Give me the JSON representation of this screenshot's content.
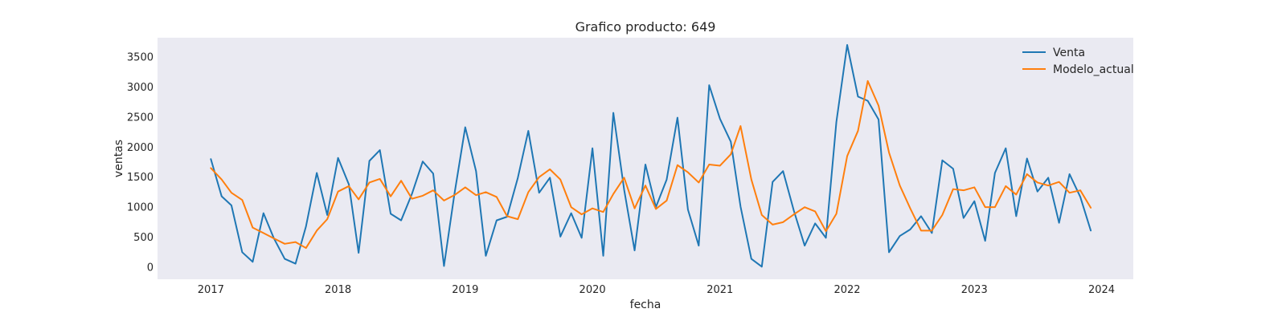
{
  "chart_data": {
    "type": "line",
    "title": "Grafico producto: 649",
    "xlabel": "fecha",
    "ylabel": "ventas",
    "xlim": [
      "2016-08-01",
      "2024-04-01"
    ],
    "ylim": [
      -200,
      3820
    ],
    "x_ticks": [
      "2017",
      "2018",
      "2019",
      "2020",
      "2021",
      "2022",
      "2023",
      "2024"
    ],
    "y_ticks": [
      0,
      500,
      1000,
      1500,
      2000,
      2500,
      3000,
      3500
    ],
    "grid": false,
    "legend": "top-right",
    "background": "#eaeaf2",
    "x": [
      "2017-01",
      "2017-02",
      "2017-03",
      "2017-04",
      "2017-05",
      "2017-06",
      "2017-07",
      "2017-08",
      "2017-09",
      "2017-10",
      "2017-11",
      "2017-12",
      "2018-01",
      "2018-02",
      "2018-03",
      "2018-04",
      "2018-05",
      "2018-06",
      "2018-07",
      "2018-08",
      "2018-09",
      "2018-10",
      "2018-11",
      "2018-12",
      "2019-01",
      "2019-02",
      "2019-03",
      "2019-04",
      "2019-05",
      "2019-06",
      "2019-07",
      "2019-08",
      "2019-09",
      "2019-10",
      "2019-11",
      "2019-12",
      "2020-01",
      "2020-02",
      "2020-03",
      "2020-04",
      "2020-05",
      "2020-06",
      "2020-07",
      "2020-08",
      "2020-09",
      "2020-10",
      "2020-11",
      "2020-12",
      "2021-01",
      "2021-02",
      "2021-03",
      "2021-04",
      "2021-05",
      "2021-06",
      "2021-07",
      "2021-08",
      "2021-09",
      "2021-10",
      "2021-11",
      "2021-12",
      "2022-01",
      "2022-02",
      "2022-03",
      "2022-04",
      "2022-05",
      "2022-06",
      "2022-07",
      "2022-08",
      "2022-09",
      "2022-10",
      "2022-11",
      "2022-12",
      "2023-01",
      "2023-02",
      "2023-03",
      "2023-04",
      "2023-05",
      "2023-06",
      "2023-07",
      "2023-08",
      "2023-09",
      "2023-10",
      "2023-11",
      "2023-12"
    ],
    "series": [
      {
        "name": "Venta",
        "color": "#1f77b4",
        "values": [
          1800,
          1180,
          1030,
          250,
          90,
          900,
          480,
          140,
          60,
          680,
          1570,
          870,
          1820,
          1380,
          240,
          1770,
          1950,
          890,
          780,
          1220,
          1760,
          1560,
          20,
          1220,
          2330,
          1600,
          190,
          780,
          840,
          1490,
          2270,
          1240,
          1490,
          510,
          900,
          490,
          1980,
          190,
          2570,
          1290,
          280,
          1710,
          1000,
          1460,
          2490,
          960,
          360,
          3030,
          2470,
          2090,
          1010,
          140,
          10,
          1420,
          1600,
          940,
          360,
          730,
          490,
          2420,
          3700,
          2840,
          2770,
          2460,
          250,
          520,
          630,
          850,
          570,
          1780,
          1640,
          820,
          1100,
          440,
          1570,
          1980,
          850,
          1810,
          1260,
          1490,
          740,
          1550,
          1170,
          610
        ]
      },
      {
        "name": "Modelo_actual",
        "color": "#ff7f0e",
        "values": [
          1650,
          1460,
          1240,
          1120,
          660,
          570,
          480,
          390,
          420,
          320,
          610,
          800,
          1260,
          1350,
          1130,
          1410,
          1470,
          1180,
          1440,
          1140,
          1190,
          1280,
          1110,
          1200,
          1330,
          1200,
          1250,
          1170,
          850,
          800,
          1250,
          1500,
          1630,
          1460,
          1000,
          880,
          980,
          920,
          1220,
          1490,
          980,
          1360,
          970,
          1110,
          1700,
          1580,
          1410,
          1710,
          1690,
          1880,
          2350,
          1460,
          870,
          710,
          750,
          880,
          1000,
          930,
          600,
          890,
          1850,
          2270,
          3100,
          2690,
          1910,
          1360,
          980,
          610,
          610,
          870,
          1300,
          1280,
          1330,
          1000,
          1000,
          1350,
          1210,
          1550,
          1410,
          1360,
          1420,
          1240,
          1280,
          990
        ]
      }
    ]
  }
}
